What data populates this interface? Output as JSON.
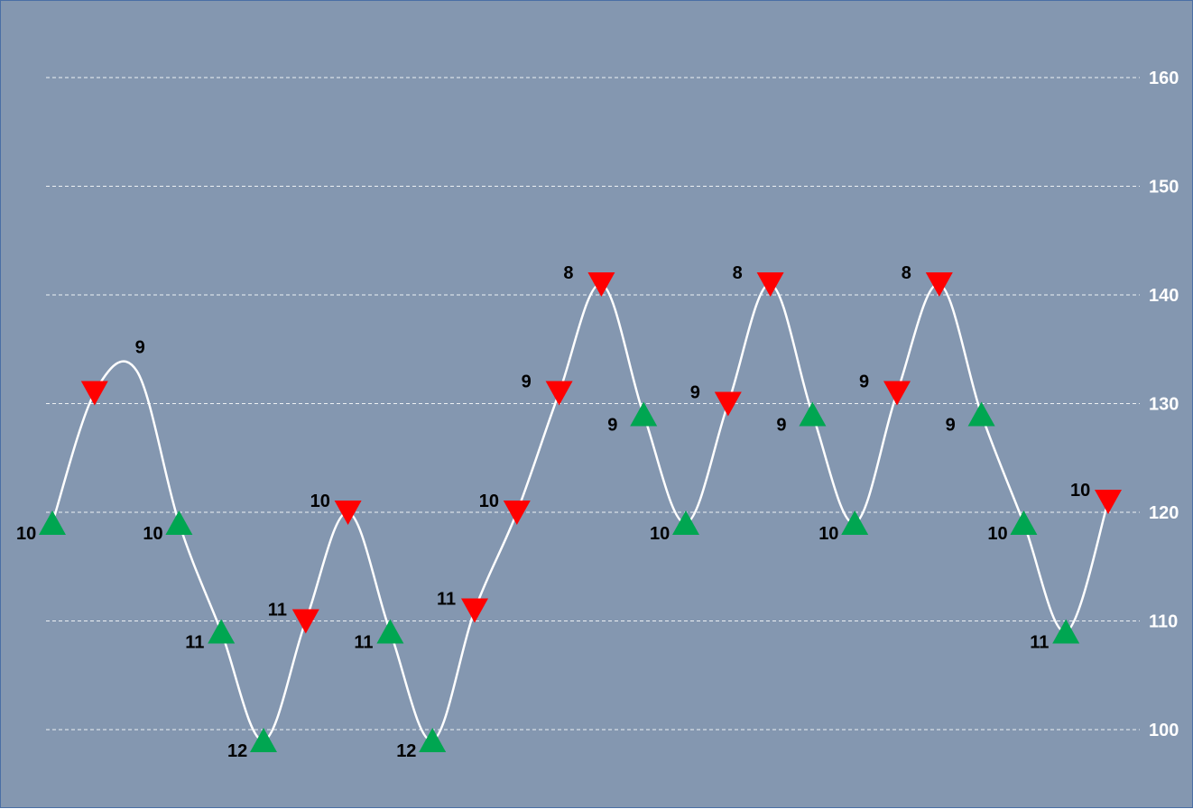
{
  "colors": {
    "background": "#8497b0",
    "gridline": "#ffffff",
    "curve": "#ffffff",
    "up_marker": "#00a651",
    "down_marker": "#ff0000",
    "tick_label": "#ffffff",
    "data_label": "#000000"
  },
  "chart_data": {
    "type": "line",
    "title": "",
    "xlabel": "",
    "ylabel": "",
    "ylim": [
      94,
      166
    ],
    "yticks": [
      100,
      110,
      120,
      130,
      140,
      150,
      160
    ],
    "grid": true,
    "y_axis_position": "right",
    "line_style": "smooth",
    "legend": "none",
    "markers": {
      "up": "green upward triangle",
      "down": "red downward triangle"
    },
    "points": [
      {
        "x": 1,
        "y": 119,
        "marker": "up",
        "label": "10"
      },
      {
        "x": 2,
        "y": 131,
        "marker": "down",
        "label": ""
      },
      {
        "x": 3,
        "y": 133,
        "marker": "none",
        "label": "9"
      },
      {
        "x": 4,
        "y": 119,
        "marker": "up",
        "label": "10"
      },
      {
        "x": 5,
        "y": 109,
        "marker": "up",
        "label": "11"
      },
      {
        "x": 6,
        "y": 99,
        "marker": "up",
        "label": "12"
      },
      {
        "x": 7,
        "y": 110,
        "marker": "down",
        "label": "11"
      },
      {
        "x": 8,
        "y": 120,
        "marker": "down",
        "label": "10"
      },
      {
        "x": 9,
        "y": 109,
        "marker": "up",
        "label": "11"
      },
      {
        "x": 10,
        "y": 99,
        "marker": "up",
        "label": "12"
      },
      {
        "x": 11,
        "y": 111,
        "marker": "down",
        "label": "11"
      },
      {
        "x": 12,
        "y": 120,
        "marker": "down",
        "label": "10"
      },
      {
        "x": 13,
        "y": 131,
        "marker": "down",
        "label": "9"
      },
      {
        "x": 14,
        "y": 141,
        "marker": "down",
        "label": "8"
      },
      {
        "x": 15,
        "y": 129,
        "marker": "up",
        "label": "9"
      },
      {
        "x": 16,
        "y": 119,
        "marker": "up",
        "label": "10"
      },
      {
        "x": 17,
        "y": 130,
        "marker": "down",
        "label": "9"
      },
      {
        "x": 18,
        "y": 141,
        "marker": "down",
        "label": "8"
      },
      {
        "x": 19,
        "y": 129,
        "marker": "up",
        "label": "9"
      },
      {
        "x": 20,
        "y": 119,
        "marker": "up",
        "label": "10"
      },
      {
        "x": 21,
        "y": 131,
        "marker": "down",
        "label": "9"
      },
      {
        "x": 22,
        "y": 141,
        "marker": "down",
        "label": "8"
      },
      {
        "x": 23,
        "y": 129,
        "marker": "up",
        "label": "9"
      },
      {
        "x": 24,
        "y": 119,
        "marker": "up",
        "label": "10"
      },
      {
        "x": 25,
        "y": 109,
        "marker": "up",
        "label": "11"
      },
      {
        "x": 26,
        "y": 121,
        "marker": "down",
        "label": "10"
      }
    ]
  }
}
